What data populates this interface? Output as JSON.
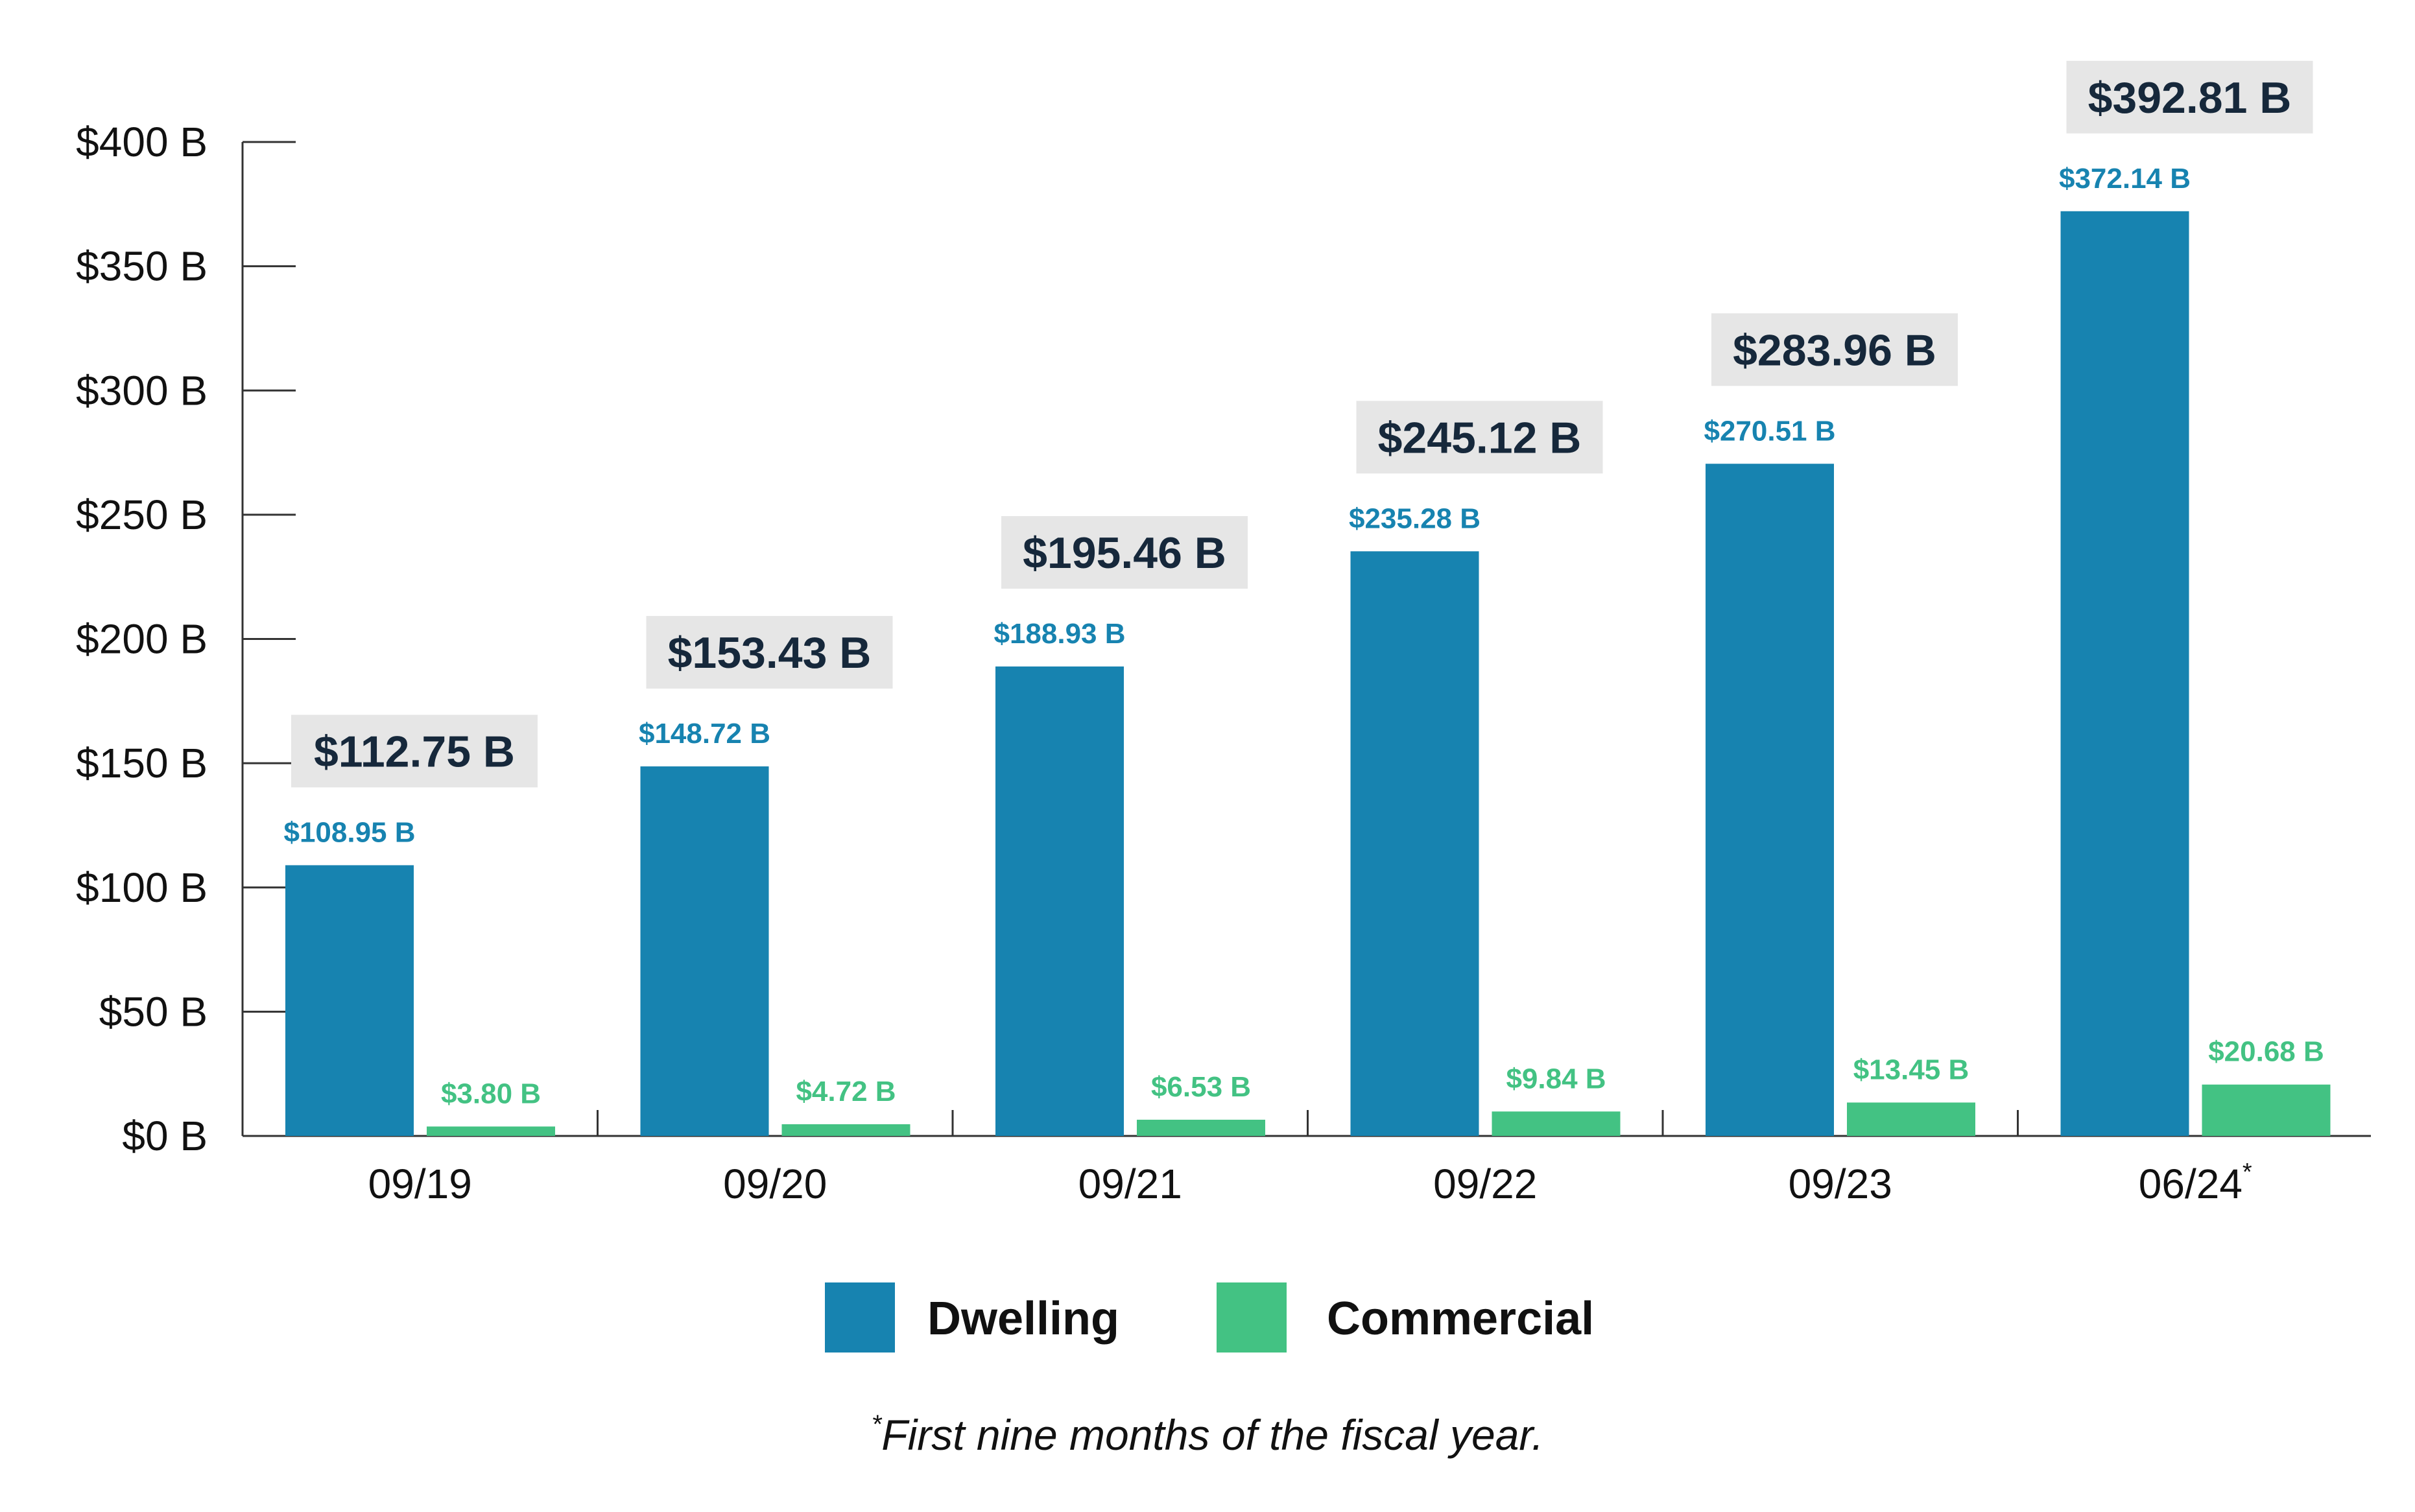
{
  "chart_data": {
    "type": "bar",
    "categories": [
      "09/19",
      "09/20",
      "09/21",
      "09/22",
      "09/23",
      "06/24"
    ],
    "category_superscripts": [
      "",
      "",
      "",
      "",
      "",
      "*"
    ],
    "series": [
      {
        "name": "Dwelling",
        "color": "#1783b0",
        "values": [
          108.95,
          148.72,
          188.93,
          235.28,
          270.51,
          372.14
        ],
        "labels": [
          "$108.95 B",
          "$148.72 B",
          "$188.93 B",
          "$235.28 B",
          "$270.51 B",
          "$372.14 B"
        ]
      },
      {
        "name": "Commercial",
        "color": "#43c283",
        "values": [
          3.8,
          4.72,
          6.53,
          9.84,
          13.45,
          20.68
        ],
        "labels": [
          "$3.80 B",
          "$4.72 B",
          "$6.53 B",
          "$9.84 B",
          "$13.45 B",
          "$20.68 B"
        ]
      }
    ],
    "totals": {
      "values": [
        112.75,
        153.43,
        195.46,
        245.12,
        283.96,
        392.81
      ],
      "labels": [
        "$112.75 B",
        "$153.43 B",
        "$195.46 B",
        "$245.12 B",
        "$283.96 B",
        "$392.81 B"
      ]
    },
    "ylim": [
      0,
      400
    ],
    "yticks": [
      0,
      50,
      100,
      150,
      200,
      250,
      300,
      350,
      400
    ],
    "ytick_labels": [
      "$0 B",
      "$50 B",
      "$100 B",
      "$150 B",
      "$200 B",
      "$250 B",
      "$300 B",
      "$350 B",
      "$400 B"
    ],
    "grid": false,
    "legend_position": "bottom-center",
    "footnote_marker": "*",
    "footnote": "First nine months of the fiscal year."
  },
  "colors": {
    "axis": "#333333",
    "total_box": "#e6e6e6",
    "total_text": "#16283b"
  }
}
